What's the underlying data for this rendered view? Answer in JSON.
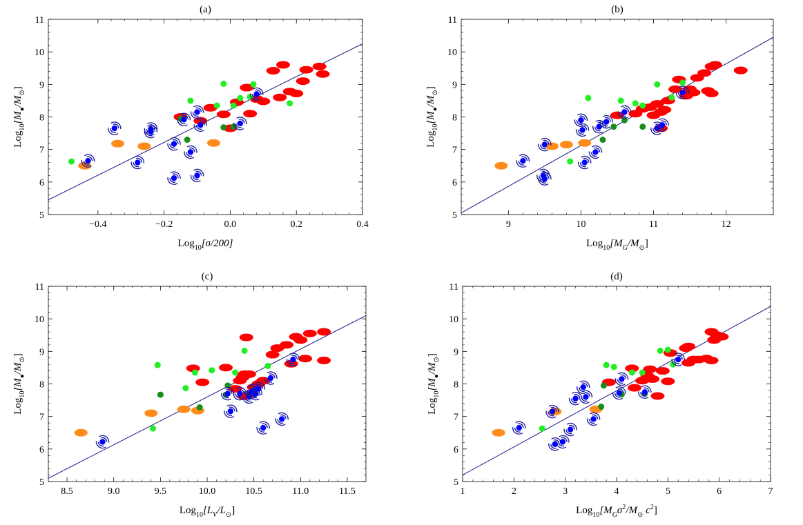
{
  "colors": {
    "fit_line": "#2a2a8c",
    "red": "#ff0000",
    "orange": "#ff8c1a",
    "light_green": "#22ee22",
    "dark_green": "#1a8c1a",
    "blue": "#0000ff",
    "spiral": "#1a1a9e"
  },
  "chart_data": [
    {
      "type": "scatter",
      "title": "(a)",
      "xlabel": {
        "base": "Log",
        "sub": "10",
        "rest": "[σ/200]"
      },
      "ylabel": {
        "base": "Log",
        "sub": "10",
        "rest": "[M",
        "sub2": "●",
        "rest2": "/M",
        "sub3": "⊙",
        "end": "]"
      },
      "xlim": [
        -0.55,
        0.4
      ],
      "ylim": [
        5,
        11
      ],
      "x_ticks": [
        -0.4,
        -0.2,
        0.0,
        0.2,
        0.4
      ],
      "x_tick_labels": [
        "−0.4",
        "−0.2",
        "0.0",
        "0.2",
        "0.4"
      ],
      "y_ticks": [
        5,
        6,
        7,
        8,
        9,
        10,
        11
      ],
      "y_tick_labels": [
        "5",
        "6",
        "7",
        "8",
        "9",
        "10",
        "11"
      ],
      "fit_line": [
        [
          -0.55,
          5.45
        ],
        [
          0.4,
          10.25
        ]
      ],
      "series": {
        "red": [
          [
            -0.15,
            8.0
          ],
          [
            -0.09,
            7.88
          ],
          [
            -0.06,
            8.28
          ],
          [
            -0.02,
            8.08
          ],
          [
            0.0,
            7.65
          ],
          [
            0.02,
            8.45
          ],
          [
            0.05,
            8.9
          ],
          [
            0.06,
            8.1
          ],
          [
            0.08,
            8.55
          ],
          [
            0.1,
            8.48
          ],
          [
            0.13,
            9.42
          ],
          [
            0.15,
            8.6
          ],
          [
            0.16,
            9.6
          ],
          [
            0.18,
            8.78
          ],
          [
            0.2,
            8.72
          ],
          [
            0.22,
            9.1
          ],
          [
            0.23,
            9.45
          ],
          [
            0.27,
            9.55
          ],
          [
            0.28,
            9.32
          ]
        ],
        "orange": [
          [
            -0.44,
            6.5
          ],
          [
            -0.34,
            7.18
          ],
          [
            -0.26,
            7.1
          ],
          [
            -0.05,
            7.2
          ]
        ],
        "light_green": [
          [
            -0.48,
            6.63
          ],
          [
            -0.12,
            8.5
          ],
          [
            -0.04,
            8.35
          ],
          [
            -0.02,
            9.02
          ],
          [
            0.01,
            8.35
          ],
          [
            0.03,
            8.58
          ],
          [
            0.06,
            8.62
          ],
          [
            0.07,
            9.0
          ],
          [
            0.18,
            8.42
          ]
        ],
        "dark_green": [
          [
            -0.15,
            7.95
          ],
          [
            -0.13,
            7.3
          ],
          [
            -0.02,
            7.68
          ],
          [
            0.01,
            7.7
          ]
        ],
        "spiral": [
          [
            -0.35,
            7.65
          ],
          [
            -0.43,
            6.65
          ],
          [
            -0.28,
            6.6
          ],
          [
            -0.24,
            7.63
          ],
          [
            -0.24,
            7.55
          ],
          [
            -0.17,
            7.17
          ],
          [
            -0.17,
            6.12
          ],
          [
            -0.14,
            7.92
          ],
          [
            -0.12,
            6.92
          ],
          [
            -0.1,
            8.15
          ],
          [
            -0.1,
            6.2
          ],
          [
            -0.09,
            7.75
          ],
          [
            0.03,
            7.8
          ],
          [
            0.08,
            8.7
          ]
        ]
      }
    },
    {
      "type": "scatter",
      "title": "(b)",
      "xlabel": {
        "base": "Log",
        "sub": "10",
        "rest": "[M",
        "sub2": "G",
        "rest2": "/M",
        "sub3": "⊙",
        "end": "]"
      },
      "ylabel": {
        "base": "Log",
        "sub": "10",
        "rest": "[M",
        "sub2": "●",
        "rest2": "/M",
        "sub3": "⊙",
        "end": "]"
      },
      "xlim": [
        8.35,
        12.65
      ],
      "ylim": [
        5,
        11
      ],
      "x_ticks": [
        9,
        10,
        11,
        12
      ],
      "x_tick_labels": [
        "9",
        "10",
        "11",
        "12"
      ],
      "y_ticks": [
        5,
        6,
        7,
        8,
        9,
        10,
        11
      ],
      "y_tick_labels": [
        "5",
        "6",
        "7",
        "8",
        "9",
        "10",
        "11"
      ],
      "fit_line": [
        [
          8.35,
          5.05
        ],
        [
          12.65,
          10.45
        ]
      ],
      "series": {
        "red": [
          [
            10.5,
            8.05
          ],
          [
            10.75,
            8.1
          ],
          [
            10.85,
            8.25
          ],
          [
            10.95,
            8.3
          ],
          [
            11.0,
            8.05
          ],
          [
            11.05,
            8.4
          ],
          [
            11.1,
            8.15
          ],
          [
            11.15,
            8.22
          ],
          [
            11.2,
            8.5
          ],
          [
            11.3,
            8.85
          ],
          [
            11.35,
            9.15
          ],
          [
            11.45,
            8.65
          ],
          [
            11.5,
            8.85
          ],
          [
            11.55,
            8.75
          ],
          [
            11.6,
            9.2
          ],
          [
            11.7,
            9.35
          ],
          [
            11.75,
            8.8
          ],
          [
            11.8,
            9.55
          ],
          [
            11.85,
            9.6
          ],
          [
            11.8,
            8.72
          ],
          [
            12.2,
            9.43
          ],
          [
            11.1,
            7.65
          ]
        ],
        "orange": [
          [
            8.9,
            6.5
          ],
          [
            9.6,
            7.1
          ],
          [
            9.8,
            7.15
          ],
          [
            10.05,
            7.2
          ]
        ],
        "light_green": [
          [
            9.85,
            6.63
          ],
          [
            10.1,
            8.58
          ],
          [
            10.55,
            8.5
          ],
          [
            10.75,
            8.42
          ],
          [
            10.85,
            8.35
          ],
          [
            11.05,
            9.0
          ],
          [
            11.25,
            8.6
          ],
          [
            11.4,
            9.05
          ]
        ],
        "dark_green": [
          [
            10.3,
            7.3
          ],
          [
            10.45,
            7.7
          ],
          [
            10.6,
            7.9
          ],
          [
            10.85,
            7.7
          ]
        ],
        "spiral": [
          [
            9.2,
            6.65
          ],
          [
            9.48,
            6.2
          ],
          [
            9.5,
            6.1
          ],
          [
            9.5,
            7.15
          ],
          [
            10.0,
            7.9
          ],
          [
            10.02,
            7.6
          ],
          [
            10.05,
            6.6
          ],
          [
            10.2,
            6.92
          ],
          [
            10.25,
            7.7
          ],
          [
            10.35,
            7.85
          ],
          [
            10.6,
            8.15
          ],
          [
            11.05,
            7.65
          ],
          [
            11.12,
            7.75
          ],
          [
            11.4,
            8.75
          ]
        ]
      }
    },
    {
      "type": "scatter",
      "title": "(c)",
      "xlabel": {
        "base": "Log",
        "sub": "10",
        "rest": "[L",
        "sub2": "V",
        "rest2": "/L",
        "sub3": "⊙",
        "end": "]"
      },
      "ylabel": {
        "base": "Log",
        "sub": "10",
        "rest": "[M",
        "sub2": "●",
        "rest2": "/M",
        "sub3": "⊙",
        "end": "]"
      },
      "xlim": [
        8.3,
        11.7
      ],
      "ylim": [
        5,
        11
      ],
      "x_ticks": [
        8.5,
        9.0,
        9.5,
        10.0,
        10.5,
        11.0,
        11.5
      ],
      "x_tick_labels": [
        "8.5",
        "9.0",
        "9.5",
        "10.0",
        "10.5",
        "11.0",
        "11.5"
      ],
      "y_ticks": [
        5,
        6,
        7,
        8,
        9,
        10,
        11
      ],
      "y_tick_labels": [
        "5",
        "6",
        "7",
        "8",
        "9",
        "10",
        "11"
      ],
      "fit_line": [
        [
          8.3,
          5.1
        ],
        [
          11.7,
          10.1
        ]
      ],
      "series": {
        "red": [
          [
            9.85,
            8.48
          ],
          [
            9.95,
            8.05
          ],
          [
            10.2,
            8.5
          ],
          [
            10.3,
            7.85
          ],
          [
            10.35,
            8.1
          ],
          [
            10.38,
            8.2
          ],
          [
            10.4,
            8.3
          ],
          [
            10.4,
            7.62
          ],
          [
            10.42,
            9.43
          ],
          [
            10.45,
            8.3
          ],
          [
            10.5,
            7.9
          ],
          [
            10.55,
            8.0
          ],
          [
            10.6,
            8.1
          ],
          [
            10.7,
            8.9
          ],
          [
            10.75,
            9.1
          ],
          [
            10.85,
            9.2
          ],
          [
            10.9,
            8.62
          ],
          [
            10.95,
            9.45
          ],
          [
            11.0,
            9.35
          ],
          [
            11.05,
            8.78
          ],
          [
            11.1,
            9.55
          ],
          [
            11.25,
            9.6
          ],
          [
            11.25,
            8.72
          ]
        ],
        "orange": [
          [
            8.65,
            6.5
          ],
          [
            9.4,
            7.1
          ],
          [
            9.75,
            7.22
          ],
          [
            9.9,
            7.18
          ]
        ],
        "light_green": [
          [
            9.42,
            6.63
          ],
          [
            9.47,
            8.58
          ],
          [
            9.77,
            7.87
          ],
          [
            9.87,
            8.35
          ],
          [
            10.05,
            8.42
          ],
          [
            10.3,
            8.35
          ],
          [
            10.4,
            9.02
          ],
          [
            10.65,
            8.55
          ]
        ],
        "dark_green": [
          [
            9.5,
            7.67
          ],
          [
            9.92,
            7.28
          ],
          [
            10.2,
            7.67
          ],
          [
            10.22,
            7.95
          ]
        ],
        "spiral": [
          [
            8.88,
            6.22
          ],
          [
            10.22,
            7.7
          ],
          [
            10.25,
            7.16
          ],
          [
            10.35,
            7.7
          ],
          [
            10.45,
            7.6
          ],
          [
            10.47,
            7.75
          ],
          [
            10.5,
            7.8
          ],
          [
            10.52,
            7.7
          ],
          [
            10.55,
            7.85
          ],
          [
            10.6,
            6.65
          ],
          [
            10.68,
            8.18
          ],
          [
            10.8,
            6.92
          ],
          [
            10.92,
            8.75
          ]
        ]
      }
    },
    {
      "type": "scatter",
      "title": "(d)",
      "xlabel": {
        "base": "Log",
        "sub": "10",
        "rest": "[M",
        "sub2": "G",
        "rest2": "σ",
        "sup": "2",
        "rest3": "/M",
        "sub3": "⊙",
        "rest4": " c",
        "sup2": "2",
        "end": "]"
      },
      "ylabel": {
        "base": "Log",
        "sub": "10",
        "rest": "[M",
        "sub2": "●",
        "rest2": "/M",
        "sub3": "⊙",
        "end": "]"
      },
      "xlim": [
        1,
        7
      ],
      "ylim": [
        5,
        11
      ],
      "x_ticks": [
        1,
        2,
        3,
        4,
        5,
        6,
        7
      ],
      "x_tick_labels": [
        "1",
        "2",
        "3",
        "4",
        "5",
        "6",
        "7"
      ],
      "y_ticks": [
        5,
        6,
        7,
        8,
        9,
        10,
        11
      ],
      "y_tick_labels": [
        "5",
        "6",
        "7",
        "8",
        "9",
        "10",
        "11"
      ],
      "fit_line": [
        [
          1,
          5.2
        ],
        [
          7,
          10.38
        ]
      ],
      "series": {
        "red": [
          [
            3.85,
            8.05
          ],
          [
            4.3,
            8.48
          ],
          [
            4.35,
            7.88
          ],
          [
            4.5,
            8.1
          ],
          [
            4.6,
            8.25
          ],
          [
            4.65,
            8.45
          ],
          [
            4.7,
            8.15
          ],
          [
            4.8,
            7.63
          ],
          [
            4.9,
            8.4
          ],
          [
            5.0,
            8.08
          ],
          [
            5.05,
            8.95
          ],
          [
            5.35,
            9.1
          ],
          [
            5.4,
            9.15
          ],
          [
            5.4,
            8.65
          ],
          [
            5.5,
            8.75
          ],
          [
            5.6,
            8.75
          ],
          [
            5.75,
            8.78
          ],
          [
            5.85,
            8.72
          ],
          [
            5.85,
            9.6
          ],
          [
            5.9,
            9.35
          ],
          [
            5.95,
            9.5
          ],
          [
            6.05,
            9.45
          ]
        ],
        "orange": [
          [
            1.7,
            6.5
          ],
          [
            2.8,
            7.15
          ],
          [
            3.6,
            7.22
          ]
        ],
        "light_green": [
          [
            2.55,
            6.63
          ],
          [
            3.8,
            8.58
          ],
          [
            3.95,
            8.52
          ],
          [
            4.3,
            8.35
          ],
          [
            4.5,
            8.35
          ],
          [
            4.85,
            9.02
          ],
          [
            5.0,
            9.05
          ],
          [
            5.1,
            8.6
          ]
        ],
        "dark_green": [
          [
            3.7,
            7.3
          ],
          [
            3.75,
            7.95
          ],
          [
            4.1,
            7.68
          ],
          [
            4.55,
            7.7
          ]
        ],
        "spiral": [
          [
            2.1,
            6.65
          ],
          [
            2.75,
            7.15
          ],
          [
            2.8,
            6.15
          ],
          [
            2.95,
            6.22
          ],
          [
            3.1,
            6.6
          ],
          [
            3.2,
            7.55
          ],
          [
            3.35,
            7.9
          ],
          [
            3.4,
            7.6
          ],
          [
            3.55,
            6.92
          ],
          [
            4.05,
            7.72
          ],
          [
            4.1,
            8.15
          ],
          [
            4.55,
            7.75
          ],
          [
            5.2,
            8.75
          ]
        ]
      }
    }
  ]
}
